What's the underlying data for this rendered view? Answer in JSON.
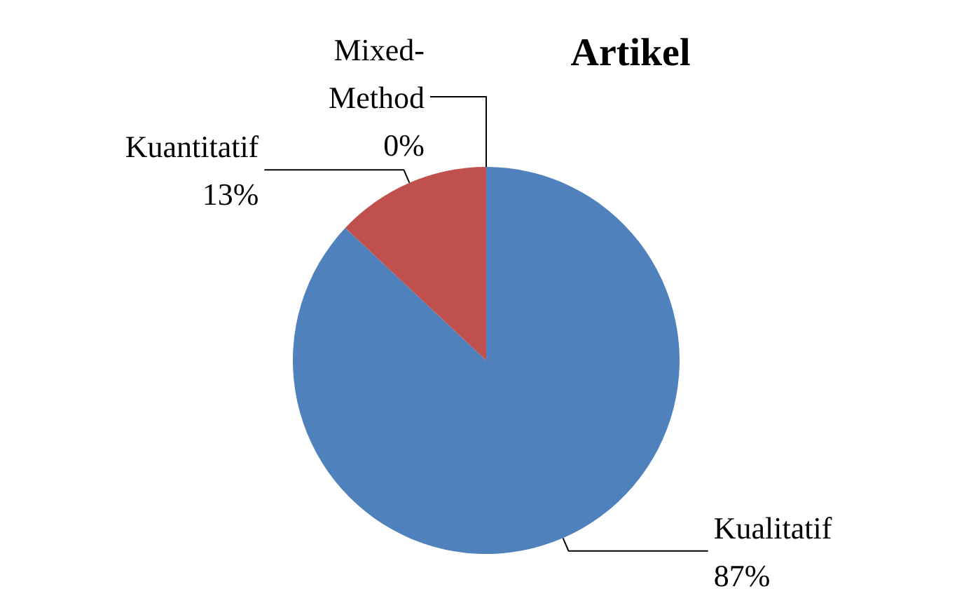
{
  "chart_data": {
    "type": "pie",
    "title": "Artikel",
    "categories": [
      "Kualitatif",
      "Kuantitatif",
      "Mixed-Method"
    ],
    "values": [
      87,
      13,
      0
    ],
    "colors": [
      "#4f81bd",
      "#c0504d",
      "#9bbb59"
    ],
    "value_labels": [
      "87%",
      "13%",
      "0%"
    ]
  }
}
